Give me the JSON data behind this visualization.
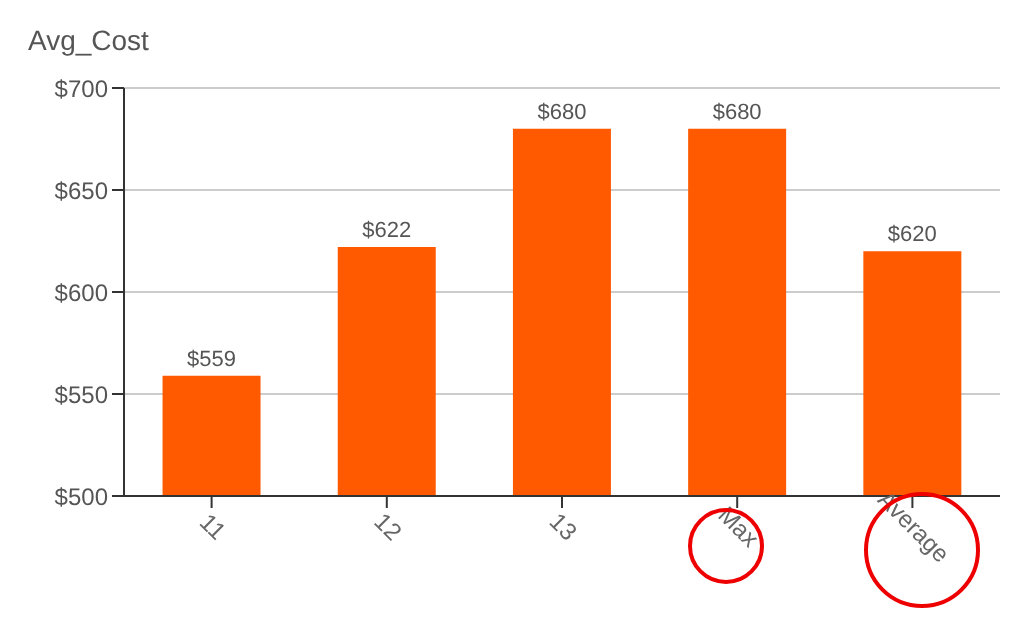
{
  "chart_data": {
    "type": "bar",
    "ylabel": "Avg_Cost",
    "categories": [
      "11",
      "12",
      "13",
      "Max",
      "Average"
    ],
    "values": [
      559,
      622,
      680,
      680,
      620
    ],
    "value_labels": [
      "$559",
      "$622",
      "$680",
      "$680",
      "$620"
    ],
    "color": "#ff5a00",
    "ylim": [
      500,
      700
    ],
    "yticks": [
      {
        "value": 500,
        "label": "$500"
      },
      {
        "value": 550,
        "label": "$550"
      },
      {
        "value": 600,
        "label": "$600"
      },
      {
        "value": 650,
        "label": "$650"
      },
      {
        "value": 700,
        "label": "$700"
      }
    ],
    "grid": "y"
  }
}
